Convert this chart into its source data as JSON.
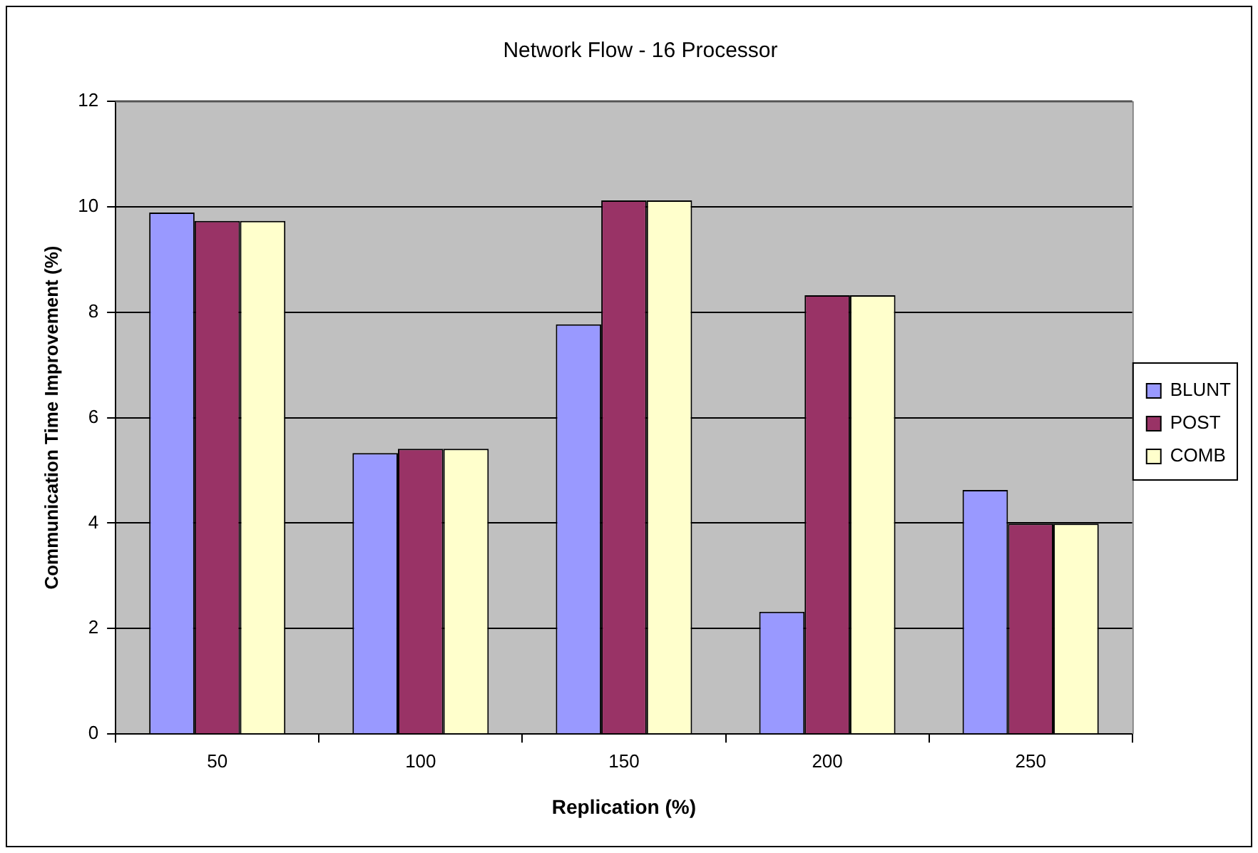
{
  "chart_data": {
    "type": "bar",
    "title": "Network Flow - 16 Processor",
    "xlabel": "Replication (%)",
    "ylabel": "Communication Time Improvement (%)",
    "categories": [
      "50",
      "100",
      "150",
      "200",
      "250"
    ],
    "series": [
      {
        "name": "BLUNT",
        "color": "#9999ff",
        "values": [
          9.89,
          5.33,
          7.77,
          2.32,
          4.63
        ]
      },
      {
        "name": "POST",
        "color": "#993366",
        "values": [
          9.73,
          5.41,
          10.12,
          8.32,
          3.99
        ]
      },
      {
        "name": "COMB",
        "color": "#ffffcc",
        "values": [
          9.73,
          5.41,
          10.12,
          8.32,
          3.99
        ]
      }
    ],
    "ylim": [
      0,
      12
    ],
    "yticks": [
      0,
      2,
      4,
      6,
      8,
      10,
      12
    ],
    "grid": "y",
    "legend": "right"
  }
}
